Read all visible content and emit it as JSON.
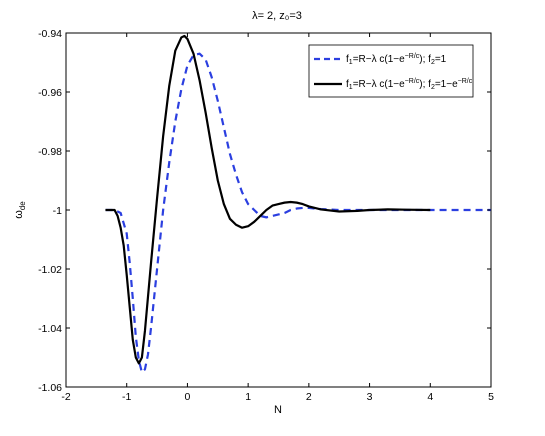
{
  "chart_data": {
    "type": "line",
    "title": "λ= 2, z₀=3",
    "xlabel": "N",
    "ylabel": "ω_de",
    "xlim": [
      -2,
      5
    ],
    "ylim": [
      -1.06,
      -0.94
    ],
    "xticks": [
      "-2",
      "-1",
      "0",
      "1",
      "2",
      "3",
      "4",
      "5"
    ],
    "yticks": [
      "-0.94",
      "-0.96",
      "-0.98",
      "-1",
      "-1.02",
      "-1.04",
      "-1.06"
    ],
    "grid": false,
    "legend_position": "top-right",
    "series": [
      {
        "name": "f₁=R−λ c(1−e^(−R/c)); f₂=1",
        "color": "#2b3fe0",
        "style": "dashed",
        "points": [
          [
            -1.35,
            -1.0
          ],
          [
            -1.2,
            -1.0
          ],
          [
            -1.1,
            -1.001
          ],
          [
            -1.0,
            -1.008
          ],
          [
            -0.95,
            -1.018
          ],
          [
            -0.9,
            -1.03
          ],
          [
            -0.85,
            -1.043
          ],
          [
            -0.8,
            -1.051
          ],
          [
            -0.75,
            -1.055
          ],
          [
            -0.7,
            -1.054
          ],
          [
            -0.65,
            -1.049
          ],
          [
            -0.6,
            -1.04
          ],
          [
            -0.5,
            -1.02
          ],
          [
            -0.4,
            -1.0
          ],
          [
            -0.3,
            -0.984
          ],
          [
            -0.2,
            -0.97
          ],
          [
            -0.1,
            -0.959
          ],
          [
            0.0,
            -0.951
          ],
          [
            0.1,
            -0.9475
          ],
          [
            0.2,
            -0.947
          ],
          [
            0.3,
            -0.949
          ],
          [
            0.4,
            -0.955
          ],
          [
            0.5,
            -0.963
          ],
          [
            0.6,
            -0.972
          ],
          [
            0.7,
            -0.981
          ],
          [
            0.8,
            -0.988
          ],
          [
            0.9,
            -0.994
          ],
          [
            1.0,
            -0.998
          ],
          [
            1.1,
            -1.0
          ],
          [
            1.2,
            -1.002
          ],
          [
            1.3,
            -1.0025
          ],
          [
            1.4,
            -1.002
          ],
          [
            1.5,
            -1.0015
          ],
          [
            1.6,
            -1.001
          ],
          [
            1.7,
            -1.0
          ],
          [
            1.8,
            -0.9995
          ],
          [
            1.9,
            -0.9993
          ],
          [
            2.0,
            -0.9993
          ],
          [
            2.2,
            -0.9997
          ],
          [
            2.5,
            -1.0
          ],
          [
            3.0,
            -1.0
          ],
          [
            4.0,
            -1.0
          ],
          [
            5.0,
            -1.0
          ]
        ]
      },
      {
        "name": "f₁=R−λ c(1−e^(−R/c)); f₂=1−e^(−R/c)",
        "color": "#000000",
        "style": "solid",
        "points": [
          [
            -1.35,
            -1.0
          ],
          [
            -1.2,
            -1.0
          ],
          [
            -1.15,
            -1.002
          ],
          [
            -1.1,
            -1.006
          ],
          [
            -1.05,
            -1.012
          ],
          [
            -1.0,
            -1.022
          ],
          [
            -0.95,
            -1.033
          ],
          [
            -0.9,
            -1.044
          ],
          [
            -0.85,
            -1.05
          ],
          [
            -0.8,
            -1.052
          ],
          [
            -0.75,
            -1.05
          ],
          [
            -0.7,
            -1.041
          ],
          [
            -0.6,
            -1.018
          ],
          [
            -0.5,
            -0.996
          ],
          [
            -0.4,
            -0.975
          ],
          [
            -0.3,
            -0.958
          ],
          [
            -0.2,
            -0.946
          ],
          [
            -0.1,
            -0.9415
          ],
          [
            -0.05,
            -0.941
          ],
          [
            0.0,
            -0.942
          ],
          [
            0.1,
            -0.947
          ],
          [
            0.2,
            -0.956
          ],
          [
            0.3,
            -0.967
          ],
          [
            0.4,
            -0.979
          ],
          [
            0.5,
            -0.99
          ],
          [
            0.6,
            -0.998
          ],
          [
            0.7,
            -1.003
          ],
          [
            0.8,
            -1.005
          ],
          [
            0.9,
            -1.006
          ],
          [
            1.0,
            -1.0055
          ],
          [
            1.1,
            -1.004
          ],
          [
            1.2,
            -1.002
          ],
          [
            1.3,
            -1.0
          ],
          [
            1.4,
            -0.9985
          ],
          [
            1.5,
            -0.998
          ],
          [
            1.6,
            -0.9975
          ],
          [
            1.7,
            -0.9973
          ],
          [
            1.8,
            -0.9975
          ],
          [
            1.9,
            -0.998
          ],
          [
            2.0,
            -0.9988
          ],
          [
            2.2,
            -0.9998
          ],
          [
            2.5,
            -1.0005
          ],
          [
            2.8,
            -1.0003
          ],
          [
            3.0,
            -1.0
          ],
          [
            3.3,
            -0.9998
          ],
          [
            3.6,
            -0.9999
          ],
          [
            4.0,
            -1.0
          ]
        ]
      }
    ]
  }
}
